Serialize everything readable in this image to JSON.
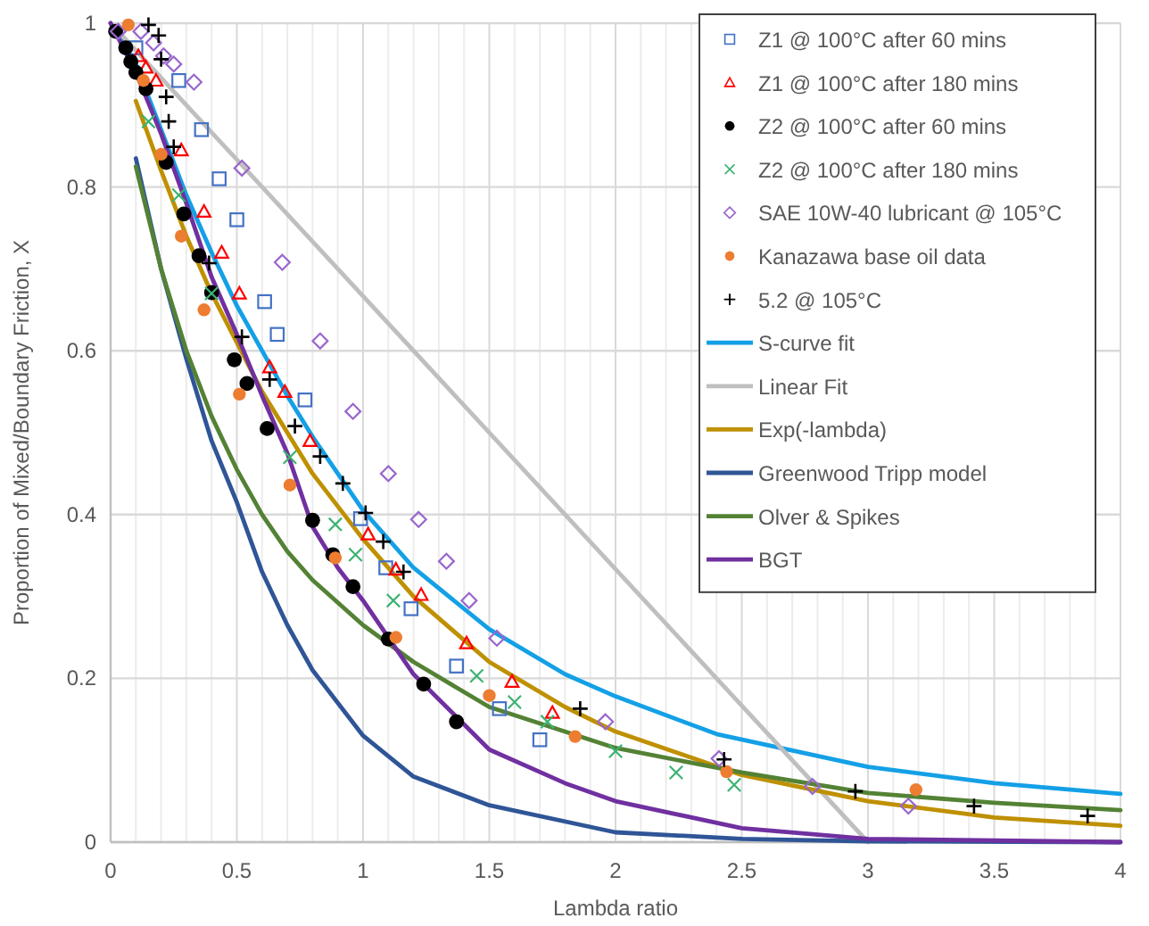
{
  "chart_data": {
    "type": "scatter",
    "xlabel": "Lambda ratio",
    "ylabel": "Proportion of Mixed/Boundary Friction, X",
    "xlim": [
      0,
      4
    ],
    "ylim": [
      0,
      1
    ],
    "xticks": [
      0,
      {
        "value": 0.1,
        "label": null
      },
      {
        "value": 0.2,
        "label": null
      },
      {
        "value": 0.3,
        "label": null
      },
      {
        "value": 0.4,
        "label": null
      },
      0.5,
      {
        "value": 0.6,
        "label": null
      },
      {
        "value": 0.7,
        "label": null
      },
      {
        "value": 0.8,
        "label": null
      },
      {
        "value": 0.9,
        "label": null
      },
      1,
      {
        "value": 1.1,
        "label": null
      },
      {
        "value": 1.2,
        "label": null
      },
      {
        "value": 1.3,
        "label": null
      },
      {
        "value": 1.4,
        "label": null
      },
      1.5,
      {
        "value": 1.6,
        "label": null
      },
      {
        "value": 1.7,
        "label": null
      },
      {
        "value": 1.8,
        "label": null
      },
      {
        "value": 1.9,
        "label": null
      },
      2,
      {
        "value": 2.1,
        "label": null
      },
      {
        "value": 2.2,
        "label": null
      },
      {
        "value": 2.3,
        "label": null
      },
      {
        "value": 2.4,
        "label": null
      },
      2.5,
      {
        "value": 2.6,
        "label": null
      },
      {
        "value": 2.7,
        "label": null
      },
      {
        "value": 2.8,
        "label": null
      },
      {
        "value": 2.9,
        "label": null
      },
      3,
      {
        "value": 3.1,
        "label": null
      },
      {
        "value": 3.2,
        "label": null
      },
      {
        "value": 3.3,
        "label": null
      },
      {
        "value": 3.4,
        "label": null
      },
      3.5,
      {
        "value": 3.6,
        "label": null
      },
      {
        "value": 3.7,
        "label": null
      },
      {
        "value": 3.8,
        "label": null
      },
      {
        "value": 3.9,
        "label": null
      },
      4
    ],
    "yticks": [
      0,
      0.2,
      0.4,
      0.6,
      0.8,
      1
    ],
    "grid": true,
    "legend": "top right",
    "series": [
      {
        "name": "Z1 @ 100°C after 60 mins",
        "marker": "square",
        "color": "#4472c4",
        "x": [
          0.1,
          0.27,
          0.36,
          0.43,
          0.5,
          0.61,
          0.66,
          0.77,
          0.99,
          1.09,
          1.19,
          1.37,
          1.54,
          1.7
        ],
        "values": [
          0.97,
          0.93,
          0.87,
          0.81,
          0.76,
          0.66,
          0.62,
          0.54,
          0.395,
          0.335,
          0.285,
          0.215,
          0.163,
          0.125
        ]
      },
      {
        "name": "Z1 @ 100°C after 180 mins",
        "marker": "triangle",
        "color": "#ff0000",
        "x": [
          0.11,
          0.14,
          0.18,
          0.28,
          0.37,
          0.44,
          0.51,
          0.63,
          0.69,
          0.79,
          1.02,
          1.13,
          1.23,
          1.41,
          1.59,
          1.75
        ],
        "values": [
          0.96,
          0.946,
          0.93,
          0.845,
          0.77,
          0.72,
          0.67,
          0.58,
          0.55,
          0.49,
          0.376,
          0.333,
          0.302,
          0.243,
          0.196,
          0.158
        ]
      },
      {
        "name": "Z2 @ 100°C after 60 mins",
        "marker": "circle",
        "color": "#000000",
        "x": [
          0.02,
          0.06,
          0.08,
          0.1,
          0.14,
          0.22,
          0.29,
          0.35,
          0.4,
          0.49,
          0.54,
          0.62,
          0.8,
          0.88,
          0.96,
          1.1,
          1.24,
          1.37
        ],
        "values": [
          0.99,
          0.97,
          0.953,
          0.94,
          0.92,
          0.83,
          0.767,
          0.716,
          0.671,
          0.589,
          0.56,
          0.505,
          0.393,
          0.351,
          0.312,
          0.248,
          0.193,
          0.147
        ]
      },
      {
        "name": "Z2 @ 100°C after 180 mins",
        "marker": "x",
        "color": "#3cb371",
        "x": [
          0.15,
          0.27,
          0.4,
          0.71,
          0.89,
          0.97,
          1.12,
          1.45,
          1.6,
          1.73,
          2.0,
          2.24,
          2.47
        ],
        "values": [
          0.88,
          0.79,
          0.67,
          0.47,
          0.388,
          0.351,
          0.295,
          0.203,
          0.171,
          0.147,
          0.111,
          0.085,
          0.07
        ]
      },
      {
        "name": "SAE 10W-40 lubricant @ 105°C",
        "marker": "diamond",
        "color": "#9966cc",
        "x": [
          0.03,
          0.12,
          0.17,
          0.21,
          0.25,
          0.33,
          0.52,
          0.68,
          0.83,
          0.96,
          1.1,
          1.22,
          1.33,
          1.42,
          1.53,
          1.96,
          2.41,
          2.78,
          3.16
        ],
        "values": [
          0.99,
          0.99,
          0.976,
          0.96,
          0.95,
          0.928,
          0.823,
          0.708,
          0.612,
          0.526,
          0.45,
          0.394,
          0.343,
          0.295,
          0.249,
          0.147,
          0.102,
          0.068,
          0.044
        ]
      },
      {
        "name": "Kanazawa base oil data",
        "marker": "circle",
        "color": "#ed7d31",
        "x": [
          0.07,
          0.13,
          0.2,
          0.28,
          0.37,
          0.51,
          0.71,
          0.89,
          1.13,
          1.5,
          1.84,
          2.44,
          3.19
        ],
        "values": [
          0.998,
          0.93,
          0.84,
          0.74,
          0.65,
          0.547,
          0.436,
          0.347,
          0.25,
          0.179,
          0.129,
          0.086,
          0.064
        ]
      },
      {
        "name": "5.2 @ 105°C",
        "marker": "cross",
        "color": "#000000",
        "x": [
          0.15,
          0.19,
          0.2,
          0.22,
          0.23,
          0.25,
          0.39,
          0.52,
          0.63,
          0.73,
          0.83,
          0.92,
          1.01,
          1.08,
          1.16,
          1.86,
          2.43,
          2.95,
          3.42,
          3.87
        ],
        "values": [
          0.998,
          0.985,
          0.956,
          0.91,
          0.88,
          0.849,
          0.707,
          0.617,
          0.565,
          0.508,
          0.471,
          0.438,
          0.402,
          0.367,
          0.33,
          0.163,
          0.101,
          0.062,
          0.044,
          0.032
        ]
      },
      {
        "name": "S-curve fit",
        "type": "line",
        "marker": "none",
        "color": "#14a0e6",
        "x": [
          0,
          0.1,
          0.2,
          0.3,
          0.4,
          0.5,
          0.6,
          0.7,
          0.8,
          1.0,
          1.2,
          1.5,
          1.8,
          2.0,
          2.4,
          3.0,
          3.5,
          4.0
        ],
        "values": [
          1,
          0.95,
          0.87,
          0.79,
          0.72,
          0.655,
          0.6,
          0.545,
          0.495,
          0.405,
          0.335,
          0.26,
          0.205,
          0.178,
          0.132,
          0.092,
          0.072,
          0.059
        ]
      },
      {
        "name": "Linear Fit",
        "type": "line",
        "marker": "none",
        "color": "#bfbfbf",
        "x": [
          0,
          3
        ],
        "values": [
          1,
          0
        ]
      },
      {
        "name": "Exp(-lambda)",
        "type": "line",
        "marker": "none",
        "color": "#bf9000",
        "x": [
          0.1,
          0.2,
          0.3,
          0.4,
          0.5,
          0.6,
          0.7,
          0.8,
          1.0,
          1.2,
          1.5,
          1.8,
          2.0,
          2.5,
          3.0,
          3.5,
          4.0
        ],
        "values": [
          0.905,
          0.82,
          0.74,
          0.67,
          0.61,
          0.55,
          0.5,
          0.45,
          0.37,
          0.3,
          0.22,
          0.165,
          0.135,
          0.082,
          0.05,
          0.03,
          0.02
        ]
      },
      {
        "name": "Greenwood Tripp model",
        "type": "line",
        "marker": "none",
        "color": "#2f5597",
        "x": [
          0.1,
          0.2,
          0.3,
          0.4,
          0.5,
          0.6,
          0.7,
          0.8,
          1.0,
          1.2,
          1.5,
          2.0,
          2.5,
          3.0,
          4.0
        ],
        "values": [
          0.835,
          0.7,
          0.59,
          0.49,
          0.415,
          0.33,
          0.265,
          0.21,
          0.13,
          0.08,
          0.045,
          0.012,
          0.004,
          0.001,
          0
        ]
      },
      {
        "name": "Olver & Spikes",
        "type": "line",
        "marker": "none",
        "color": "#548235",
        "x": [
          0.1,
          0.2,
          0.3,
          0.4,
          0.5,
          0.6,
          0.7,
          0.8,
          1.0,
          1.2,
          1.5,
          2.0,
          2.5,
          3.0,
          3.5,
          4.0
        ],
        "values": [
          0.825,
          0.7,
          0.6,
          0.52,
          0.455,
          0.4,
          0.355,
          0.32,
          0.265,
          0.22,
          0.165,
          0.115,
          0.085,
          0.06,
          0.048,
          0.039
        ]
      },
      {
        "name": "BGT",
        "type": "line",
        "marker": "none",
        "color": "#7030a0",
        "x": [
          0,
          0.1,
          0.2,
          0.3,
          0.4,
          0.5,
          0.6,
          0.7,
          0.8,
          0.9,
          1.0,
          1.2,
          1.5,
          1.8,
          2.0,
          2.5,
          3.0,
          4.0
        ],
        "values": [
          1,
          0.94,
          0.865,
          0.78,
          0.69,
          0.62,
          0.545,
          0.475,
          0.385,
          0.335,
          0.295,
          0.205,
          0.113,
          0.072,
          0.05,
          0.017,
          0.004,
          0
        ]
      }
    ]
  }
}
